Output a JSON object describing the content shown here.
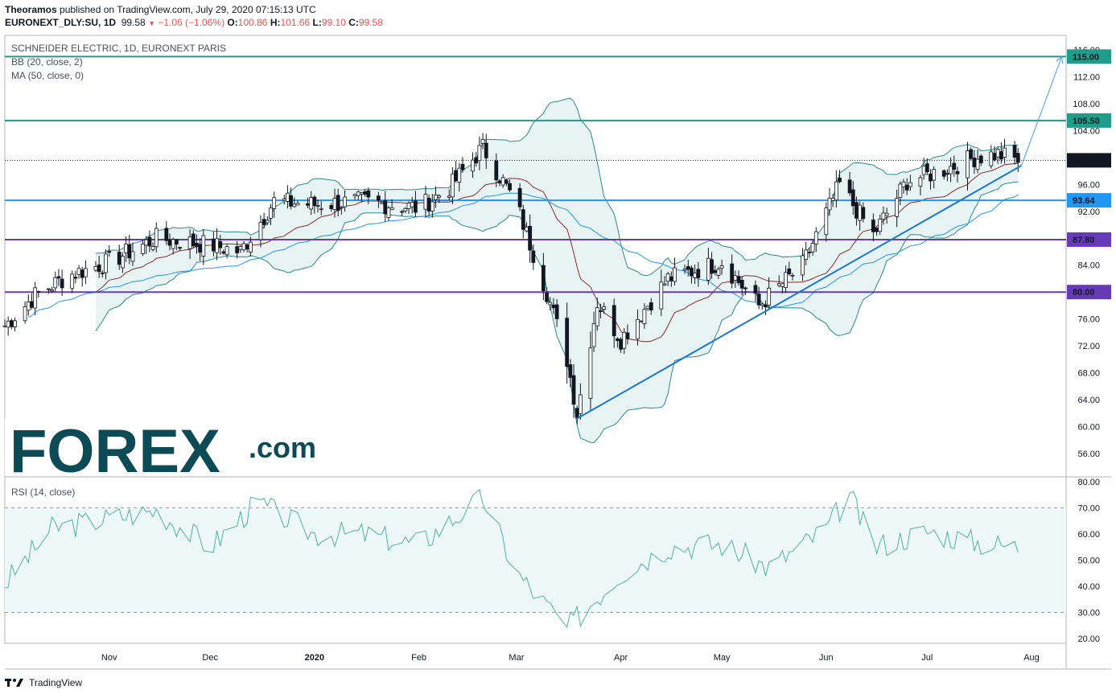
{
  "header": {
    "author": "Theoramos",
    "published": "published on TradingView.com, July 29, 2020 07:15:13 UTC",
    "symbol": "EURONEXT_DLY:SU, 1D",
    "last": "99.58",
    "change": "−1.06 (−1.06%)",
    "o_label": "O:",
    "o_val": "100.86",
    "h_label": "H:",
    "h_val": "101.66",
    "l_label": "L:",
    "l_val": "99.10",
    "c_label": "C:",
    "c_val": "99.58"
  },
  "legend": {
    "title": "SCHNEIDER ELECTRIC, 1D, EURONEXT PARIS",
    "bb": "BB (20, close, 2)",
    "ma": "MA (50, close, 0)",
    "rsi": "RSI (14, close)"
  },
  "logo": {
    "text": "FOREX",
    "suffix": ".com"
  },
  "footer": {
    "brand": "TradingView"
  },
  "colors": {
    "teal_level": "#1e9c8c",
    "blue_level": "#2196f3",
    "purple_level": "#673ab7",
    "trendline": "#1976d2",
    "bb_band": "#2a8c88",
    "bb_fill": "#e8f4f3",
    "bb_basis": "#8b2b2b",
    "ma": "#2196f3",
    "rsi_line": "#4cb3a4",
    "logo_main": "#0c4a55",
    "logo_accent": "#22b573"
  },
  "chart_data": {
    "type": "candlestick",
    "symbol": "EURONEXT_DLY:SU",
    "x_ticks": [
      "Nov",
      "Dec",
      "2020",
      "Feb",
      "Mar",
      "Apr",
      "May",
      "Jun",
      "Jul",
      "Aug"
    ],
    "y_ticks": [
      "116.00",
      "112.00",
      "108.00",
      "104.00",
      "96.00",
      "92.00",
      "84.00",
      "80.00",
      "76.00",
      "72.00",
      "68.00",
      "64.00",
      "60.00",
      "56.00"
    ],
    "ylim": [
      52,
      116
    ],
    "levels": [
      {
        "value": 115.0,
        "label": "115.00",
        "color": "#1e9c8c"
      },
      {
        "value": 105.5,
        "label": "105.50",
        "color": "#1e9c8c"
      },
      {
        "value": 93.64,
        "label": "93.64",
        "color": "#2196f3"
      },
      {
        "value": 87.8,
        "label": "87.80",
        "color": "#673ab7"
      },
      {
        "value": 80.0,
        "label": "80.00",
        "color": "#673ab7"
      }
    ],
    "last_price": {
      "value": 99.58,
      "label": "99.58"
    },
    "close_series": [
      {
        "date": "2019-10-01",
        "close": 75.0
      },
      {
        "date": "2019-10-10",
        "close": 79.5
      },
      {
        "date": "2019-10-20",
        "close": 82.5
      },
      {
        "date": "2019-11-01",
        "close": 84.5
      },
      {
        "date": "2019-11-15",
        "close": 88.0
      },
      {
        "date": "2019-12-01",
        "close": 87.0
      },
      {
        "date": "2019-12-10",
        "close": 86.0
      },
      {
        "date": "2019-12-20",
        "close": 93.5
      },
      {
        "date": "2020-01-01",
        "close": 93.0
      },
      {
        "date": "2020-01-15",
        "close": 93.5
      },
      {
        "date": "2020-02-01",
        "close": 92.5
      },
      {
        "date": "2020-02-10",
        "close": 95.5
      },
      {
        "date": "2020-02-20",
        "close": 101.5
      },
      {
        "date": "2020-03-01",
        "close": 93.0
      },
      {
        "date": "2020-03-10",
        "close": 80.0
      },
      {
        "date": "2020-03-16",
        "close": 70.0
      },
      {
        "date": "2020-03-19",
        "close": 62.0
      },
      {
        "date": "2020-03-25",
        "close": 78.5
      },
      {
        "date": "2020-04-01",
        "close": 73.0
      },
      {
        "date": "2020-04-15",
        "close": 82.0
      },
      {
        "date": "2020-05-01",
        "close": 84.5
      },
      {
        "date": "2020-05-12",
        "close": 78.0
      },
      {
        "date": "2020-05-25",
        "close": 84.0
      },
      {
        "date": "2020-06-05",
        "close": 96.0
      },
      {
        "date": "2020-06-15",
        "close": 88.5
      },
      {
        "date": "2020-06-25",
        "close": 96.5
      },
      {
        "date": "2020-07-05",
        "close": 98.0
      },
      {
        "date": "2020-07-15",
        "close": 100.0
      },
      {
        "date": "2020-07-22",
        "close": 100.5
      },
      {
        "date": "2020-07-28",
        "close": 99.58
      }
    ],
    "indicators": [
      "BB (20, close, 2)",
      "MA (50, close, 0)"
    ],
    "rsi": {
      "name": "RSI (14, close)",
      "y_ticks": [
        "80.00",
        "70.00",
        "60.00",
        "50.00",
        "40.00",
        "30.00",
        "20.00"
      ],
      "ylim": [
        20,
        80
      ],
      "bands": [
        70,
        30
      ],
      "values": [
        {
          "date": "2019-10-01",
          "rsi": 41
        },
        {
          "date": "2019-10-15",
          "rsi": 62
        },
        {
          "date": "2019-11-01",
          "rsi": 66
        },
        {
          "date": "2019-11-15",
          "rsi": 69
        },
        {
          "date": "2019-12-01",
          "rsi": 55
        },
        {
          "date": "2019-12-15",
          "rsi": 72
        },
        {
          "date": "2020-01-01",
          "rsi": 60
        },
        {
          "date": "2020-01-15",
          "rsi": 60
        },
        {
          "date": "2020-02-01",
          "rsi": 56
        },
        {
          "date": "2020-02-20",
          "rsi": 74
        },
        {
          "date": "2020-03-01",
          "rsi": 45
        },
        {
          "date": "2020-03-16",
          "rsi": 24
        },
        {
          "date": "2020-04-01",
          "rsi": 45
        },
        {
          "date": "2020-04-15",
          "rsi": 55
        },
        {
          "date": "2020-05-01",
          "rsi": 56
        },
        {
          "date": "2020-05-15",
          "rsi": 47
        },
        {
          "date": "2020-06-01",
          "rsi": 62
        },
        {
          "date": "2020-06-08",
          "rsi": 75
        },
        {
          "date": "2020-06-15",
          "rsi": 55
        },
        {
          "date": "2020-07-01",
          "rsi": 61
        },
        {
          "date": "2020-07-15",
          "rsi": 57
        },
        {
          "date": "2020-07-28",
          "rsi": 55
        }
      ]
    },
    "annotations": [
      "rising trendline from March low",
      "projection arrow to 115.00"
    ]
  }
}
